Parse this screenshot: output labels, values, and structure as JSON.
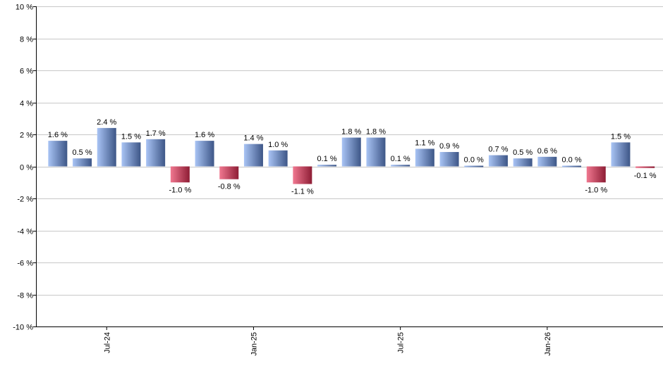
{
  "chart_data": {
    "type": "bar",
    "title": "",
    "xlabel": "",
    "ylabel": "",
    "ylim": [
      -10,
      10
    ],
    "y_ticks": [
      10,
      8,
      6,
      4,
      2,
      0,
      -2,
      -4,
      -6,
      -8,
      -10
    ],
    "y_tick_suffix": " %",
    "grid": true,
    "x_tick_labels": [
      {
        "label": "Jul-24",
        "index": 2
      },
      {
        "label": "Jan-25",
        "index": 8
      },
      {
        "label": "Jul-25",
        "index": 14
      },
      {
        "label": "Jan-26",
        "index": 20
      }
    ],
    "values": [
      1.6,
      0.5,
      2.4,
      1.5,
      1.7,
      -1.0,
      1.6,
      -0.8,
      1.4,
      1.0,
      -1.1,
      0.1,
      1.8,
      1.8,
      0.1,
      1.1,
      0.9,
      0.0,
      0.7,
      0.5,
      0.6,
      0.0,
      -1.0,
      1.5,
      -0.1
    ],
    "value_labels": [
      "1.6 %",
      "0.5 %",
      "2.4 %",
      "1.5 %",
      "1.7 %",
      "-1.0 %",
      "1.6 %",
      "-0.8 %",
      "1.4 %",
      "1.0 %",
      "-1.1 %",
      "0.1 %",
      "1.8 %",
      "1.8 %",
      "0.1 %",
      "1.1 %",
      "0.9 %",
      "0.0 %",
      "0.7 %",
      "0.5 %",
      "0.6 %",
      "0.0 %",
      "-1.0 %",
      "1.5 %",
      "-0.1 %"
    ],
    "colors": {
      "positive_light": "#a9c4f5",
      "positive_dark": "#3d5687",
      "negative_light": "#f07890",
      "negative_dark": "#8e1d35"
    }
  }
}
